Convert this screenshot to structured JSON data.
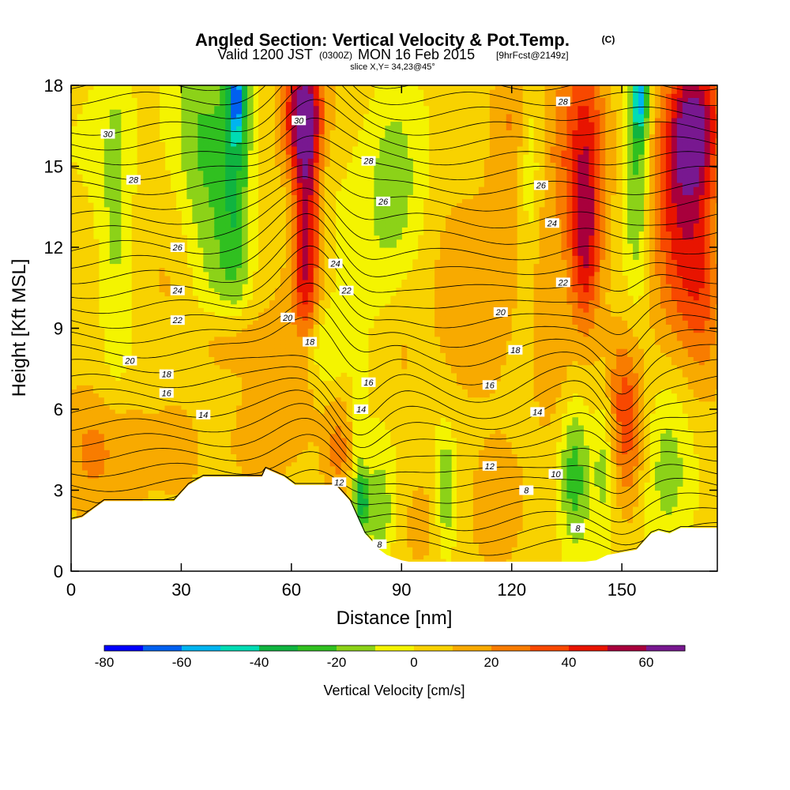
{
  "title": {
    "main": "Angled Section: Vertical Velocity & Pot.Temp.",
    "main_mark": "(C)",
    "sub_prefix": "Valid 1200 JST",
    "sub_zulu": "(0300Z)",
    "sub_date": "MON 16 Feb 2015",
    "sub_fcst": "[9hrFcst@2149z]",
    "slice": "slice X,Y= 34,23@45°"
  },
  "chart_data": {
    "type": "heatmap",
    "xlabel": "Distance [nm]",
    "ylabel": "Height [Kft MSL]",
    "xlim": [
      0,
      176
    ],
    "ylim": [
      0,
      18
    ],
    "x_ticks": [
      0,
      30,
      60,
      90,
      120,
      150
    ],
    "y_ticks": [
      0,
      3,
      6,
      9,
      12,
      15,
      18
    ],
    "colorbar": {
      "title": "Vertical Velocity [cm/s]",
      "min": -80,
      "max": 70,
      "step": 10,
      "tick_values": [
        -80,
        -60,
        -40,
        -20,
        0,
        20,
        40,
        60
      ],
      "colors": [
        "#0000ff",
        "#0060f0",
        "#00b4f0",
        "#00dcb4",
        "#10b440",
        "#30c020",
        "#8cd218",
        "#f4f400",
        "#f8d200",
        "#f8aa00",
        "#f87c00",
        "#f84800",
        "#e81400",
        "#a8003c",
        "#781890"
      ]
    },
    "terrain_profile": {
      "distance": [
        0,
        3,
        6,
        9,
        12,
        17,
        21,
        23,
        26,
        28,
        30,
        32,
        36,
        40,
        44,
        48,
        52,
        53,
        58,
        61,
        63,
        65,
        67,
        72,
        74,
        76,
        78,
        80,
        82,
        83,
        84,
        86,
        88,
        90,
        92,
        95,
        100,
        110,
        120,
        125,
        130,
        136,
        140,
        143,
        146,
        150,
        154,
        156,
        158,
        160,
        163,
        166,
        170,
        176
      ],
      "height": [
        1.9,
        2.0,
        2.3,
        2.6,
        2.6,
        2.6,
        2.6,
        2.6,
        2.6,
        2.6,
        2.9,
        3.2,
        3.5,
        3.5,
        3.5,
        3.5,
        3.5,
        3.8,
        3.5,
        3.2,
        3.2,
        3.2,
        3.2,
        3.2,
        2.9,
        2.6,
        2.0,
        1.4,
        1.1,
        0.9,
        0.8,
        0.6,
        0.5,
        0.4,
        0.35,
        0.35,
        0.35,
        0.35,
        0.35,
        0.35,
        0.35,
        0.35,
        0.35,
        0.4,
        0.6,
        0.7,
        0.8,
        1.1,
        1.4,
        1.5,
        1.4,
        1.6,
        1.6,
        1.6
      ]
    },
    "velocity_features": [
      {
        "x": 5,
        "y": 4.5,
        "value": 15,
        "sx": 6,
        "sy": 1.5
      },
      {
        "x": 12,
        "y": 13.0,
        "value": -15,
        "sx": 3,
        "sy": 5
      },
      {
        "x": 15,
        "y": 5.0,
        "value": 10,
        "sx": 6,
        "sy": 1.5
      },
      {
        "x": 27,
        "y": 10.0,
        "value": 10,
        "sx": 6,
        "sy": 3
      },
      {
        "x": 30,
        "y": 4.5,
        "value": 10,
        "sx": 5,
        "sy": 1.5
      },
      {
        "x": 35,
        "y": 16.0,
        "value": -25,
        "sx": 6,
        "sy": 3
      },
      {
        "x": 40,
        "y": 12.0,
        "value": -15,
        "sx": 5,
        "sy": 3
      },
      {
        "x": 43,
        "y": 8.5,
        "value": 20,
        "sx": 6,
        "sy": 1
      },
      {
        "x": 45,
        "y": 17.5,
        "value": -45,
        "sx": 1.5,
        "sy": 1
      },
      {
        "x": 45,
        "y": 15.0,
        "value": -28,
        "sx": 3,
        "sy": 4
      },
      {
        "x": 50,
        "y": 5.0,
        "value": 10,
        "sx": 6,
        "sy": 1.5
      },
      {
        "x": 58,
        "y": 8.5,
        "value": 10,
        "sx": 4,
        "sy": 2
      },
      {
        "x": 63,
        "y": 17.0,
        "value": 55,
        "sx": 4,
        "sy": 1.5
      },
      {
        "x": 64,
        "y": 13.5,
        "value": 42,
        "sx": 2.5,
        "sy": 3
      },
      {
        "x": 64,
        "y": 10.5,
        "value": 20,
        "sx": 3,
        "sy": 2.5
      },
      {
        "x": 67,
        "y": 8.2,
        "value": -20,
        "sx": 6,
        "sy": 1.1
      },
      {
        "x": 73,
        "y": 4.5,
        "value": 20,
        "sx": 3,
        "sy": 1.5
      },
      {
        "x": 78,
        "y": 4.5,
        "value": -10,
        "sx": 1.5,
        "sy": 2
      },
      {
        "x": 79,
        "y": 2.6,
        "value": -35,
        "sx": 1.5,
        "sy": 0.8
      },
      {
        "x": 84,
        "y": 2.0,
        "value": -20,
        "sx": 2.5,
        "sy": 1.5
      },
      {
        "x": 88,
        "y": 14.5,
        "value": -20,
        "sx": 6,
        "sy": 3.5
      },
      {
        "x": 90,
        "y": 8.0,
        "value": 10,
        "sx": 4,
        "sy": 2
      },
      {
        "x": 95,
        "y": 2.0,
        "value": 12,
        "sx": 4,
        "sy": 1.5
      },
      {
        "x": 102,
        "y": 3.0,
        "value": -25,
        "sx": 2,
        "sy": 1.5
      },
      {
        "x": 108,
        "y": 10.0,
        "value": 10,
        "sx": 6,
        "sy": 3
      },
      {
        "x": 115,
        "y": 2.0,
        "value": 10,
        "sx": 4,
        "sy": 1.5
      },
      {
        "x": 118,
        "y": 13.0,
        "value": 10,
        "sx": 4,
        "sy": 4
      },
      {
        "x": 120,
        "y": 17.0,
        "value": 15,
        "sx": 5,
        "sy": 1.5
      },
      {
        "x": 125,
        "y": 15.0,
        "value": -15,
        "sx": 2,
        "sy": 2.5
      },
      {
        "x": 128,
        "y": 11.0,
        "value": 10,
        "sx": 3,
        "sy": 2.5
      },
      {
        "x": 132,
        "y": 8.0,
        "value": 15,
        "sx": 4,
        "sy": 2
      },
      {
        "x": 133,
        "y": 16.0,
        "value": 15,
        "sx": 3,
        "sy": 3
      },
      {
        "x": 137,
        "y": 3.6,
        "value": -30,
        "sx": 3,
        "sy": 2
      },
      {
        "x": 140,
        "y": 15.0,
        "value": 40,
        "sx": 3.5,
        "sy": 3.5
      },
      {
        "x": 140,
        "y": 11.5,
        "value": 25,
        "sx": 3,
        "sy": 2
      },
      {
        "x": 145,
        "y": 4.5,
        "value": -20,
        "sx": 2,
        "sy": 2
      },
      {
        "x": 148,
        "y": 6.5,
        "value": 15,
        "sx": 4,
        "sy": 2
      },
      {
        "x": 152,
        "y": 5.0,
        "value": 25,
        "sx": 3,
        "sy": 2.5
      },
      {
        "x": 154,
        "y": 15.0,
        "value": -30,
        "sx": 2.5,
        "sy": 3.5
      },
      {
        "x": 155,
        "y": 17.5,
        "value": -45,
        "sx": 1.5,
        "sy": 1
      },
      {
        "x": 163,
        "y": 4.5,
        "value": -18,
        "sx": 5,
        "sy": 2.5
      },
      {
        "x": 165,
        "y": 13.0,
        "value": 35,
        "sx": 5,
        "sy": 3
      },
      {
        "x": 170,
        "y": 16.5,
        "value": 58,
        "sx": 5,
        "sy": 2
      },
      {
        "x": 172,
        "y": 11.0,
        "value": 25,
        "sx": 4,
        "sy": 2.5
      }
    ],
    "theta_labels": [
      {
        "x": 10,
        "y": 16.2,
        "text": "30"
      },
      {
        "x": 17,
        "y": 14.5,
        "text": "28"
      },
      {
        "x": 29,
        "y": 12.0,
        "text": "26"
      },
      {
        "x": 29,
        "y": 10.4,
        "text": "24"
      },
      {
        "x": 29,
        "y": 9.3,
        "text": "22"
      },
      {
        "x": 16,
        "y": 7.8,
        "text": "20"
      },
      {
        "x": 26,
        "y": 7.3,
        "text": "18"
      },
      {
        "x": 26,
        "y": 6.6,
        "text": "16"
      },
      {
        "x": 36,
        "y": 5.8,
        "text": "14"
      },
      {
        "x": 62,
        "y": 16.7,
        "text": "30"
      },
      {
        "x": 59,
        "y": 9.4,
        "text": "20"
      },
      {
        "x": 65,
        "y": 8.5,
        "text": "18"
      },
      {
        "x": 72,
        "y": 11.4,
        "text": "24"
      },
      {
        "x": 75,
        "y": 10.4,
        "text": "22"
      },
      {
        "x": 81,
        "y": 7.0,
        "text": "16"
      },
      {
        "x": 79,
        "y": 6.0,
        "text": "14"
      },
      {
        "x": 73,
        "y": 3.3,
        "text": "12"
      },
      {
        "x": 84,
        "y": 1.0,
        "text": "8"
      },
      {
        "x": 81,
        "y": 15.2,
        "text": "28"
      },
      {
        "x": 85,
        "y": 13.7,
        "text": "26"
      },
      {
        "x": 117,
        "y": 9.6,
        "text": "20"
      },
      {
        "x": 121,
        "y": 8.2,
        "text": "18"
      },
      {
        "x": 114,
        "y": 6.9,
        "text": "16"
      },
      {
        "x": 128,
        "y": 14.3,
        "text": "26"
      },
      {
        "x": 131,
        "y": 12.9,
        "text": "24"
      },
      {
        "x": 134,
        "y": 10.7,
        "text": "22"
      },
      {
        "x": 134,
        "y": 17.4,
        "text": "28"
      },
      {
        "x": 127,
        "y": 5.9,
        "text": "14"
      },
      {
        "x": 114,
        "y": 3.9,
        "text": "12"
      },
      {
        "x": 132,
        "y": 3.6,
        "text": "10"
      },
      {
        "x": 124,
        "y": 3.0,
        "text": "8"
      },
      {
        "x": 138,
        "y": 1.6,
        "text": "8"
      }
    ]
  }
}
